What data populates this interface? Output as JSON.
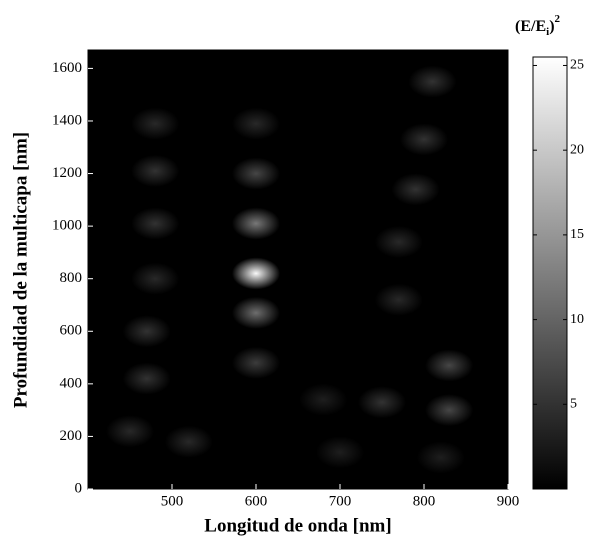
{
  "chart_data": {
    "type": "heatmap",
    "xlabel": "Longitud de onda [nm]",
    "ylabel": "Profundidad  de la multicapa [nm]",
    "colorbar_label": {
      "base": "(E/E",
      "sub": "i",
      "close": ")",
      "sup": "2"
    },
    "xlim": [
      400,
      900
    ],
    "xticks": [
      500,
      600,
      700,
      800,
      900
    ],
    "ylim": [
      0,
      1670
    ],
    "yticks": [
      0,
      200,
      400,
      600,
      800,
      1000,
      1200,
      1400,
      1600
    ],
    "clim": [
      0,
      25.5
    ],
    "cticks": [
      5,
      10,
      15,
      20,
      25
    ],
    "colormap": [
      "#000000",
      "#ffffff"
    ],
    "spots": [
      {
        "x": 600,
        "y": 820,
        "value": 25
      },
      {
        "x": 600,
        "y": 1010,
        "value": 12
      },
      {
        "x": 600,
        "y": 670,
        "value": 11
      },
      {
        "x": 600,
        "y": 1200,
        "value": 7
      },
      {
        "x": 600,
        "y": 480,
        "value": 6
      },
      {
        "x": 600,
        "y": 1390,
        "value": 4
      },
      {
        "x": 480,
        "y": 1390,
        "value": 4
      },
      {
        "x": 480,
        "y": 1210,
        "value": 5
      },
      {
        "x": 480,
        "y": 1010,
        "value": 5
      },
      {
        "x": 480,
        "y": 800,
        "value": 4
      },
      {
        "x": 470,
        "y": 600,
        "value": 5
      },
      {
        "x": 470,
        "y": 420,
        "value": 5
      },
      {
        "x": 450,
        "y": 220,
        "value": 4
      },
      {
        "x": 810,
        "y": 1550,
        "value": 5
      },
      {
        "x": 800,
        "y": 1330,
        "value": 5
      },
      {
        "x": 790,
        "y": 1140,
        "value": 5
      },
      {
        "x": 770,
        "y": 940,
        "value": 4
      },
      {
        "x": 770,
        "y": 720,
        "value": 4
      },
      {
        "x": 830,
        "y": 470,
        "value": 7
      },
      {
        "x": 830,
        "y": 300,
        "value": 7
      },
      {
        "x": 750,
        "y": 330,
        "value": 5
      },
      {
        "x": 680,
        "y": 340,
        "value": 3
      },
      {
        "x": 820,
        "y": 120,
        "value": 3
      },
      {
        "x": 520,
        "y": 180,
        "value": 4
      },
      {
        "x": 700,
        "y": 140,
        "value": 3
      }
    ]
  }
}
